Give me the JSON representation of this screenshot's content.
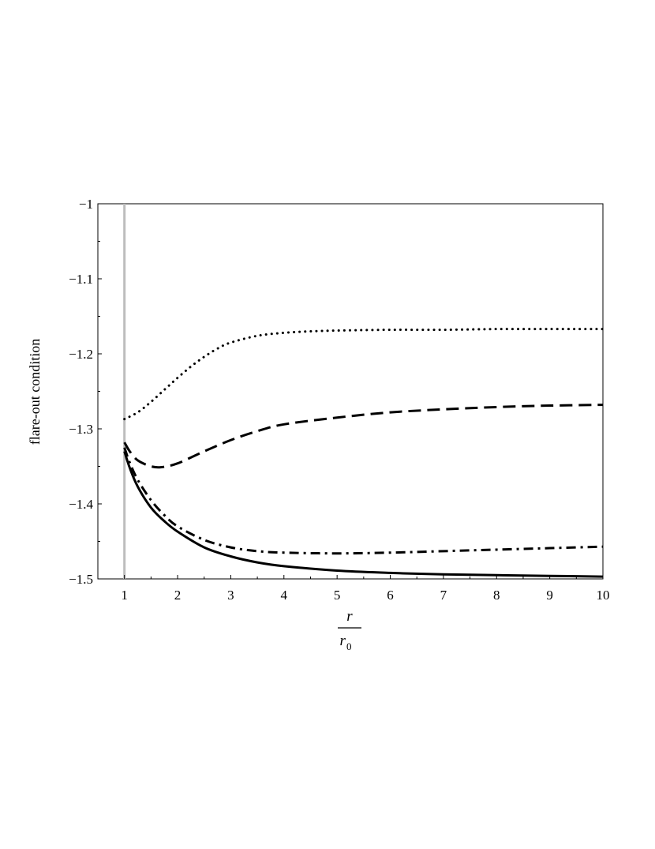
{
  "chart_data": {
    "type": "line",
    "title": "",
    "xlabel": {
      "numerator": "r",
      "denominator": "r",
      "denominator_subscript": "0"
    },
    "ylabel": "flare-out condition",
    "xlim": [
      0.5,
      10
    ],
    "ylim": [
      -1.5,
      -1.0
    ],
    "grid": false,
    "legend": "none",
    "x_ticks": [
      1,
      2,
      3,
      4,
      5,
      6,
      7,
      8,
      9,
      10
    ],
    "x_tick_labels": [
      "1",
      "2",
      "3",
      "4",
      "5",
      "6",
      "7",
      "8",
      "9",
      "10"
    ],
    "y_ticks": [
      -1.0,
      -1.1,
      -1.2,
      -1.3,
      -1.4,
      -1.5
    ],
    "y_tick_labels": [
      "−1",
      "−1.1",
      "−1.2",
      "−1.3",
      "−1.4",
      "−1.5"
    ],
    "reference_line": {
      "x": 1,
      "color": "#bdbdbd"
    },
    "series": [
      {
        "style": "dotted",
        "color": "#000000",
        "x": [
          1.0,
          1.25,
          1.5,
          1.75,
          2.0,
          2.25,
          2.5,
          2.75,
          3.0,
          3.5,
          4.0,
          4.5,
          5.0,
          6.0,
          7.0,
          8.0,
          9.0,
          10.0
        ],
        "y": [
          -1.287,
          -1.278,
          -1.264,
          -1.248,
          -1.232,
          -1.217,
          -1.204,
          -1.193,
          -1.185,
          -1.176,
          -1.172,
          -1.17,
          -1.169,
          -1.168,
          -1.168,
          -1.167,
          -1.167,
          -1.167
        ]
      },
      {
        "style": "dashed",
        "color": "#000000",
        "x": [
          1.0,
          1.1,
          1.25,
          1.5,
          1.7,
          2.0,
          2.5,
          3.0,
          3.5,
          4.0,
          5.0,
          6.0,
          7.0,
          8.0,
          9.0,
          10.0
        ],
        "y": [
          -1.318,
          -1.33,
          -1.342,
          -1.35,
          -1.351,
          -1.346,
          -1.33,
          -1.315,
          -1.303,
          -1.294,
          -1.285,
          -1.278,
          -1.274,
          -1.271,
          -1.269,
          -1.268
        ]
      },
      {
        "style": "dashdot",
        "color": "#000000",
        "x": [
          1.0,
          1.1,
          1.25,
          1.5,
          1.75,
          2.0,
          2.5,
          3.0,
          3.5,
          4.0,
          5.0,
          6.0,
          7.0,
          8.0,
          9.0,
          10.0
        ],
        "y": [
          -1.325,
          -1.345,
          -1.368,
          -1.395,
          -1.415,
          -1.43,
          -1.448,
          -1.458,
          -1.463,
          -1.465,
          -1.466,
          -1.465,
          -1.463,
          -1.461,
          -1.459,
          -1.457
        ]
      },
      {
        "style": "solid",
        "color": "#000000",
        "x": [
          1.0,
          1.1,
          1.25,
          1.5,
          1.75,
          2.0,
          2.5,
          3.0,
          3.5,
          4.0,
          5.0,
          6.0,
          7.0,
          8.0,
          9.0,
          10.0
        ],
        "y": [
          -1.33,
          -1.352,
          -1.377,
          -1.405,
          -1.423,
          -1.437,
          -1.458,
          -1.47,
          -1.478,
          -1.483,
          -1.489,
          -1.492,
          -1.494,
          -1.495,
          -1.496,
          -1.497
        ]
      }
    ]
  }
}
